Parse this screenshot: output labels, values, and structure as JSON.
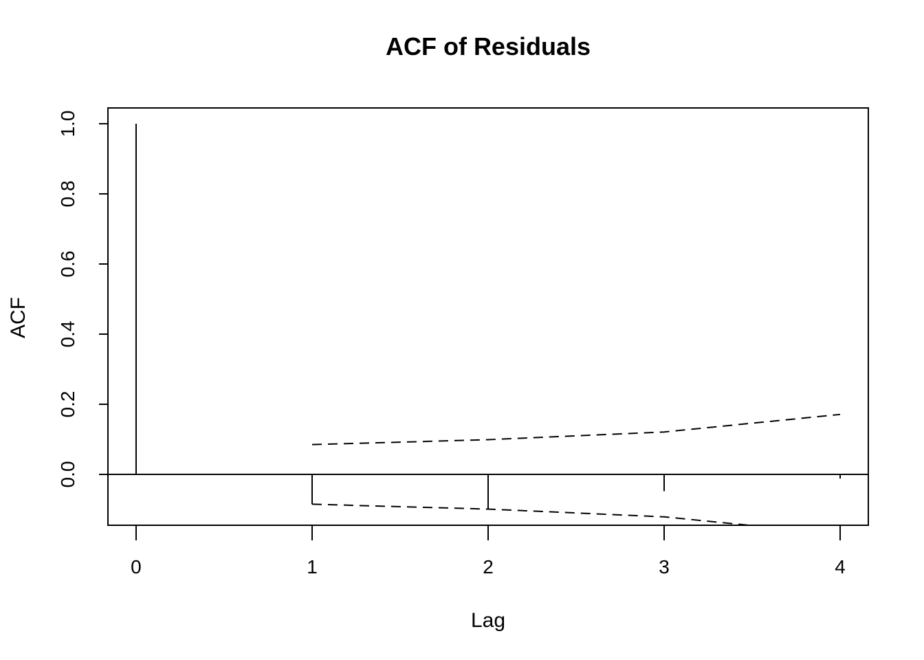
{
  "chart_data": {
    "type": "bar",
    "title": "ACF of Residuals",
    "xlabel": "Lag",
    "ylabel": "ACF",
    "xlim": [
      -0.16,
      4.16
    ],
    "ylim": [
      -0.145,
      1.045
    ],
    "x_ticks": [
      "0",
      "1",
      "2",
      "3",
      "4"
    ],
    "y_ticks": [
      "0.0",
      "0.2",
      "0.4",
      "0.6",
      "0.8",
      "1.0"
    ],
    "lags": [
      0,
      1,
      2,
      3,
      4
    ],
    "acf": [
      1.0,
      -0.085,
      -0.1,
      -0.048,
      -0.012
    ],
    "confidence_band": {
      "lags": [
        1,
        2,
        3,
        4
      ],
      "upper": [
        0.085,
        0.099,
        0.121,
        0.171
      ],
      "lower": [
        -0.085,
        -0.099,
        -0.121,
        -0.171
      ]
    },
    "grid": false,
    "zero_line": true
  }
}
